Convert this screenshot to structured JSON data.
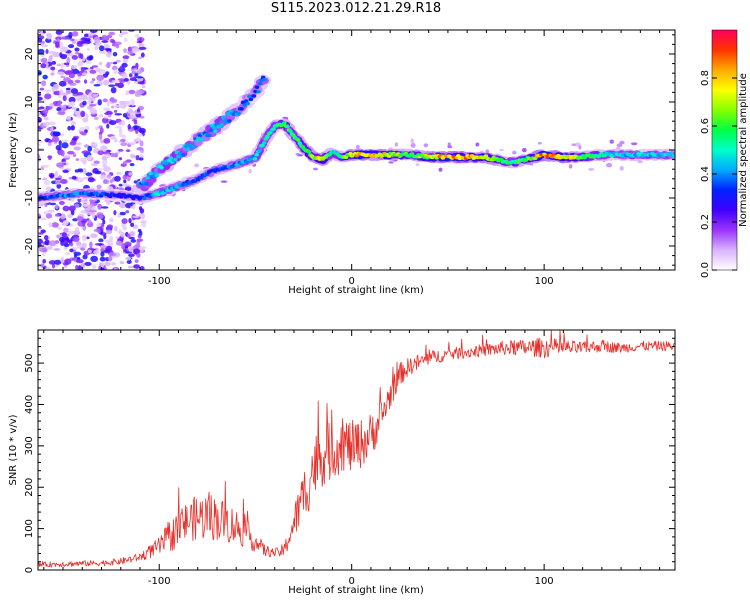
{
  "title": "S115.2023.012.21.29.R18",
  "chart_data": [
    {
      "type": "heatmap",
      "xlabel": "Height of straight line (km)",
      "ylabel": "Frequency (Hz)",
      "xlim": [
        -163,
        168
      ],
      "ylim": [
        -25,
        25
      ],
      "x_ticks": [
        -100,
        0,
        100
      ],
      "y_ticks": [
        -20,
        -10,
        0,
        10,
        20
      ],
      "colorbar": {
        "label": "Normalized spectral amplitude",
        "range": [
          0.0,
          1.0
        ],
        "ticks": [
          0.0,
          0.2,
          0.4,
          0.6,
          0.8
        ],
        "colors": [
          "#ffffff",
          "#d9b3ff",
          "#9a33ff",
          "#3f00ff",
          "#0022ff",
          "#00aaff",
          "#00ffcc",
          "#00ff44",
          "#88ff00",
          "#ffff00",
          "#ffaa00",
          "#ff3300",
          "#ff0060"
        ]
      },
      "ridges": [
        {
          "x": [
            -163,
            -140,
            -120,
            -110,
            -100,
            -90,
            -80,
            -70,
            -60,
            -50,
            -45,
            -40,
            -35,
            -30,
            -25,
            -20,
            -15,
            -10,
            -5,
            0,
            10,
            20,
            30,
            40,
            50,
            60,
            70,
            80,
            85,
            90,
            100,
            110,
            120,
            130,
            140,
            150,
            168
          ],
          "y": [
            -10,
            -9,
            -9.5,
            -10,
            -9,
            -7.5,
            -6,
            -4,
            -3,
            -1.5,
            2,
            5,
            5.5,
            3,
            0.5,
            -1.5,
            -2,
            -0.5,
            -1.5,
            -1,
            -1,
            -1,
            -1,
            -1.5,
            -1.5,
            -1.5,
            -1.5,
            -2.5,
            -2.5,
            -2,
            -1,
            -1.5,
            -1.5,
            -1,
            -1,
            -1,
            -1
          ],
          "amplitude": [
            0.35,
            0.4,
            0.3,
            0.3,
            0.45,
            0.4,
            0.35,
            0.35,
            0.4,
            0.45,
            0.5,
            0.55,
            0.6,
            0.55,
            0.6,
            0.7,
            0.7,
            0.5,
            0.55,
            0.75,
            0.8,
            0.7,
            0.55,
            0.7,
            0.85,
            0.8,
            0.75,
            0.55,
            0.55,
            0.6,
            0.85,
            0.8,
            0.6,
            0.5,
            0.45,
            0.45,
            0.45
          ]
        },
        {
          "x": [
            -110,
            -100,
            -90,
            -80,
            -70,
            -60,
            -55,
            -50,
            -45
          ],
          "y": [
            -8,
            -4,
            -1,
            2,
            5,
            8,
            10,
            12,
            15
          ],
          "amplitude": [
            0.4,
            0.45,
            0.45,
            0.4,
            0.45,
            0.4,
            0.35,
            0.35,
            0.4
          ]
        }
      ]
    },
    {
      "type": "line",
      "xlabel": "Height of straight line (km)",
      "ylabel": "SNR (10 * v/v)",
      "xlim": [
        -163,
        168
      ],
      "ylim": [
        0,
        580
      ],
      "x_ticks": [
        -100,
        0,
        100
      ],
      "y_ticks": [
        0,
        100,
        200,
        300,
        400,
        500
      ],
      "series": [
        {
          "color": "#e8302a",
          "x": [
            -163,
            -150,
            -140,
            -130,
            -120,
            -110,
            -100,
            -95,
            -90,
            -85,
            -80,
            -75,
            -70,
            -65,
            -60,
            -55,
            -50,
            -45,
            -40,
            -35,
            -30,
            -25,
            -20,
            -15,
            -10,
            -5,
            0,
            5,
            10,
            15,
            20,
            25,
            30,
            40,
            50,
            60,
            70,
            80,
            90,
            100,
            110,
            120,
            130,
            140,
            150,
            160,
            168
          ],
          "values": [
            12,
            14,
            15,
            16,
            20,
            30,
            55,
            75,
            95,
            115,
            120,
            125,
            120,
            110,
            100,
            85,
            65,
            45,
            40,
            45,
            110,
            170,
            240,
            270,
            280,
            300,
            290,
            300,
            320,
            360,
            420,
            470,
            490,
            510,
            520,
            525,
            530,
            535,
            535,
            535,
            535,
            535,
            540,
            535,
            540,
            540,
            540
          ],
          "spread": [
            6,
            7,
            7,
            7,
            8,
            10,
            22,
            38,
            45,
            50,
            55,
            60,
            55,
            50,
            45,
            35,
            25,
            15,
            10,
            18,
            40,
            70,
            80,
            75,
            70,
            70,
            65,
            60,
            55,
            45,
            35,
            28,
            22,
            18,
            15,
            15,
            15,
            18,
            20,
            25,
            20,
            15,
            15,
            12,
            12,
            12,
            12
          ]
        }
      ]
    }
  ]
}
